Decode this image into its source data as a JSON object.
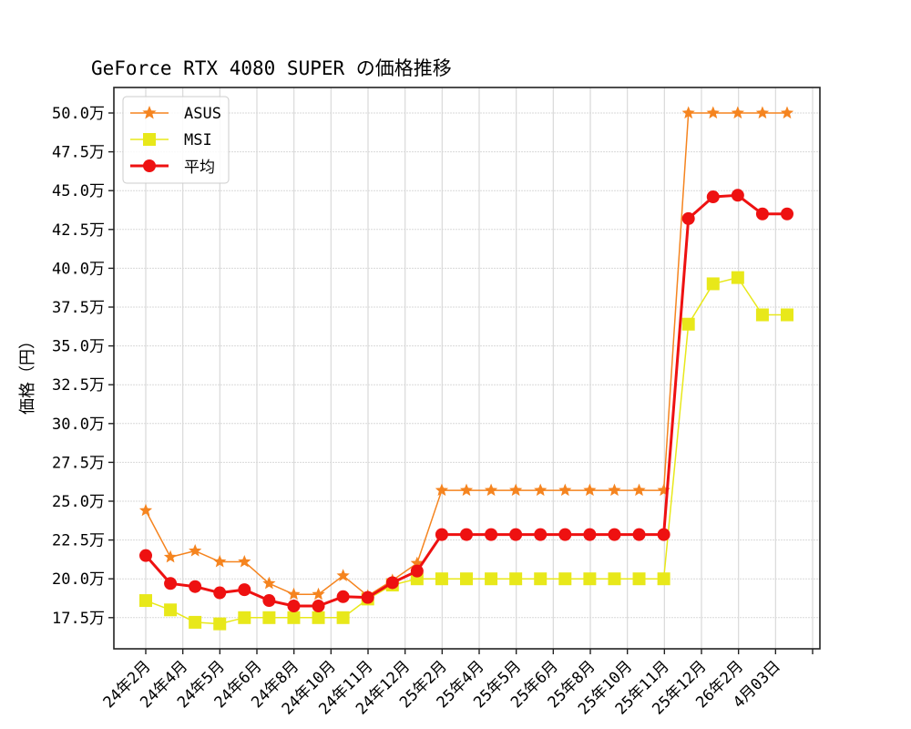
{
  "chart_data": {
    "type": "line",
    "title": "GeForce RTX 4080 SUPER の価格推移",
    "xlabel": "",
    "ylabel": "価格（円）",
    "ylim": [
      15.0,
      52.0
    ],
    "y_unit": "万",
    "yticks": [
      17.5,
      20.0,
      22.5,
      25.0,
      27.5,
      30.0,
      32.5,
      35.0,
      37.5,
      40.0,
      42.5,
      45.0,
      47.5,
      50.0
    ],
    "ytick_labels": [
      "17.5万",
      "20.0万",
      "22.5万",
      "25.0万",
      "27.5万",
      "30.0万",
      "32.5万",
      "35.0万",
      "37.5万",
      "40.0万",
      "42.5万",
      "45.0万",
      "47.5万",
      "50.0万"
    ],
    "xtick_labels": [
      "24年2月",
      "24年4月",
      "24年5月",
      "24年6月",
      "24年8月",
      "24年10月",
      "24年11月",
      "24年12月",
      "25年2月",
      "25年4月",
      "25年5月",
      "25年6月",
      "25年8月",
      "25年10月",
      "25年11月",
      "25年12月",
      "26年2月",
      "4月03日"
    ],
    "grid": true,
    "legend_position": "upper left",
    "series": [
      {
        "name": "ASUS",
        "color": "#f5841f",
        "marker": "star",
        "linewidth": 1.5,
        "values": [
          24.4,
          21.4,
          21.8,
          21.1,
          21.1,
          19.7,
          19.0,
          19.0,
          20.2,
          18.9,
          19.9,
          21.0,
          25.7,
          25.7,
          25.7,
          25.7,
          25.7,
          25.7,
          25.7,
          25.7,
          25.7,
          25.7,
          50.0,
          50.0,
          50.0,
          50.0,
          50.0
        ]
      },
      {
        "name": "MSI",
        "color": "#e8e81a",
        "marker": "square",
        "linewidth": 1.5,
        "values": [
          18.6,
          18.0,
          17.2,
          17.1,
          17.5,
          17.5,
          17.5,
          17.5,
          17.5,
          18.7,
          19.6,
          20.0,
          20.0,
          20.0,
          20.0,
          20.0,
          20.0,
          20.0,
          20.0,
          20.0,
          20.0,
          20.0,
          36.4,
          39.0,
          39.4,
          37.0,
          37.0
        ]
      },
      {
        "name": "平均",
        "color": "#ee1111",
        "marker": "circle",
        "linewidth": 3,
        "values": [
          21.5,
          19.7,
          19.5,
          19.1,
          19.3,
          18.6,
          18.25,
          18.25,
          18.85,
          18.8,
          19.75,
          20.5,
          22.85,
          22.85,
          22.85,
          22.85,
          22.85,
          22.85,
          22.85,
          22.85,
          22.85,
          22.85,
          43.2,
          44.6,
          44.7,
          43.5,
          43.5
        ]
      }
    ]
  },
  "legend": {
    "items": [
      {
        "label": "ASUS"
      },
      {
        "label": "MSI"
      },
      {
        "label": "平均"
      }
    ]
  }
}
